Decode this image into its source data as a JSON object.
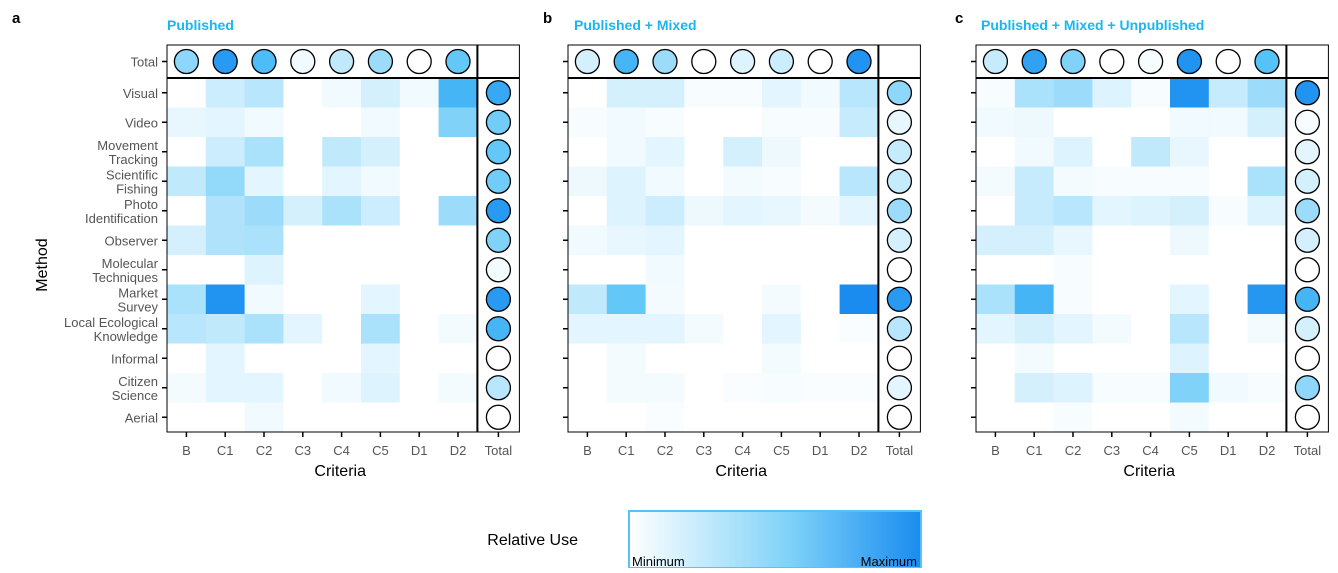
{
  "colors": {
    "min": "#ffffff",
    "max": "#1a8cf0",
    "mid": "#55c3f7",
    "border": "#000000",
    "title": "#1ab6f0"
  },
  "legend": {
    "title": "Relative Use",
    "min_label": "Minimum",
    "max_label": "Maximum"
  },
  "chart_data": [
    {
      "type": "heatmap",
      "panel_label": "a",
      "title": "Published",
      "xlabel": "Criteria",
      "ylabel": "Method",
      "x_categories": [
        "B",
        "C1",
        "C2",
        "C3",
        "C4",
        "C5",
        "D1",
        "D2"
      ],
      "y_categories": [
        "Visual",
        "Video",
        "Movement\nTracking",
        "Scientific\nFishing",
        "Photo\nIdentification",
        "Observer",
        "Molecular\nTechniques",
        "Market\nSurvey",
        "Local Ecological\nKnowledge",
        "Informal",
        "Citizen\nScience",
        "Aerial"
      ],
      "total_label": "Total",
      "values": [
        [
          0.0,
          0.18,
          0.25,
          0.0,
          0.05,
          0.15,
          0.05,
          0.7
        ],
        [
          0.08,
          0.1,
          0.05,
          0.0,
          0.0,
          0.05,
          0.0,
          0.45
        ],
        [
          0.0,
          0.18,
          0.3,
          0.0,
          0.22,
          0.15,
          0.0,
          0.0
        ],
        [
          0.22,
          0.38,
          0.1,
          0.0,
          0.1,
          0.05,
          0.0,
          0.0
        ],
        [
          0.0,
          0.28,
          0.35,
          0.15,
          0.3,
          0.18,
          0.0,
          0.35
        ],
        [
          0.15,
          0.28,
          0.3,
          0.0,
          0.0,
          0.0,
          0.0,
          0.0
        ],
        [
          0.0,
          0.0,
          0.12,
          0.0,
          0.0,
          0.0,
          0.0,
          0.0
        ],
        [
          0.3,
          0.95,
          0.05,
          0.0,
          0.0,
          0.1,
          0.0,
          0.0
        ],
        [
          0.25,
          0.22,
          0.3,
          0.1,
          0.0,
          0.3,
          0.0,
          0.04
        ],
        [
          0.0,
          0.1,
          0.0,
          0.0,
          0.0,
          0.1,
          0.0,
          0.0
        ],
        [
          0.04,
          0.1,
          0.1,
          0.0,
          0.05,
          0.12,
          0.0,
          0.04
        ],
        [
          0.0,
          0.0,
          0.05,
          0.0,
          0.0,
          0.0,
          0.0,
          0.0
        ]
      ],
      "col_totals": [
        0.4,
        0.9,
        0.65,
        0.05,
        0.22,
        0.35,
        0.0,
        0.55
      ],
      "row_totals": [
        0.8,
        0.5,
        0.55,
        0.5,
        0.9,
        0.45,
        0.04,
        0.9,
        0.7,
        0.0,
        0.25,
        0.0
      ]
    },
    {
      "type": "heatmap",
      "panel_label": "b",
      "title": "Published + Mixed",
      "xlabel": "Criteria",
      "x_categories": [
        "B",
        "C1",
        "C2",
        "C3",
        "C4",
        "C5",
        "D1",
        "D2"
      ],
      "total_label": "Total",
      "values": [
        [
          0.0,
          0.15,
          0.15,
          0.03,
          0.03,
          0.1,
          0.05,
          0.25
        ],
        [
          0.03,
          0.05,
          0.03,
          0.0,
          0.0,
          0.03,
          0.03,
          0.2
        ],
        [
          0.0,
          0.05,
          0.1,
          0.0,
          0.15,
          0.06,
          0.0,
          0.0
        ],
        [
          0.06,
          0.12,
          0.05,
          0.0,
          0.04,
          0.03,
          0.0,
          0.25
        ],
        [
          0.0,
          0.12,
          0.18,
          0.06,
          0.1,
          0.08,
          0.04,
          0.1
        ],
        [
          0.05,
          0.08,
          0.1,
          0.0,
          0.0,
          0.0,
          0.0,
          0.0
        ],
        [
          0.0,
          0.0,
          0.05,
          0.0,
          0.0,
          0.0,
          0.0,
          0.0
        ],
        [
          0.22,
          0.55,
          0.04,
          0.0,
          0.0,
          0.04,
          0.0,
          1.0
        ],
        [
          0.1,
          0.1,
          0.1,
          0.04,
          0.0,
          0.1,
          0.0,
          0.02
        ],
        [
          0.0,
          0.04,
          0.0,
          0.0,
          0.0,
          0.04,
          0.0,
          0.0
        ],
        [
          0.0,
          0.04,
          0.04,
          0.0,
          0.02,
          0.03,
          0.02,
          0.02
        ],
        [
          0.0,
          0.0,
          0.02,
          0.0,
          0.0,
          0.0,
          0.0,
          0.0
        ]
      ],
      "col_totals": [
        0.15,
        0.7,
        0.35,
        0.0,
        0.12,
        0.18,
        0.0,
        0.95
      ],
      "row_totals": [
        0.4,
        0.08,
        0.2,
        0.2,
        0.35,
        0.15,
        0.0,
        0.9,
        0.25,
        0.0,
        0.1,
        0.0
      ]
    },
    {
      "type": "heatmap",
      "panel_label": "c",
      "title": "Published + Mixed + Unpublished",
      "xlabel": "Criteria",
      "x_categories": [
        "B",
        "C1",
        "C2",
        "C3",
        "C4",
        "C5",
        "D1",
        "D2"
      ],
      "total_label": "Total",
      "values": [
        [
          0.03,
          0.3,
          0.35,
          0.12,
          0.03,
          0.95,
          0.2,
          0.35
        ],
        [
          0.05,
          0.06,
          0.0,
          0.0,
          0.0,
          0.05,
          0.05,
          0.15
        ],
        [
          0.0,
          0.05,
          0.12,
          0.0,
          0.22,
          0.08,
          0.0,
          0.0
        ],
        [
          0.04,
          0.2,
          0.04,
          0.03,
          0.03,
          0.03,
          0.0,
          0.3
        ],
        [
          0.0,
          0.2,
          0.25,
          0.1,
          0.12,
          0.15,
          0.03,
          0.12
        ],
        [
          0.15,
          0.15,
          0.08,
          0.0,
          0.0,
          0.06,
          0.0,
          0.0
        ],
        [
          0.0,
          0.0,
          0.03,
          0.0,
          0.0,
          0.0,
          0.0,
          0.0
        ],
        [
          0.3,
          0.7,
          0.03,
          0.0,
          0.0,
          0.1,
          0.0,
          0.92
        ],
        [
          0.1,
          0.15,
          0.1,
          0.04,
          0.0,
          0.25,
          0.0,
          0.04
        ],
        [
          0.0,
          0.04,
          0.0,
          0.0,
          0.0,
          0.12,
          0.0,
          0.0
        ],
        [
          0.0,
          0.15,
          0.12,
          0.03,
          0.03,
          0.45,
          0.05,
          0.03
        ],
        [
          0.0,
          0.0,
          0.03,
          0.0,
          0.0,
          0.04,
          0.0,
          0.0
        ]
      ],
      "col_totals": [
        0.2,
        0.85,
        0.45,
        0.0,
        0.03,
        0.95,
        0.0,
        0.6
      ],
      "row_totals": [
        0.95,
        0.03,
        0.1,
        0.15,
        0.35,
        0.15,
        0.0,
        0.7,
        0.15,
        0.0,
        0.4,
        0.0
      ]
    }
  ]
}
